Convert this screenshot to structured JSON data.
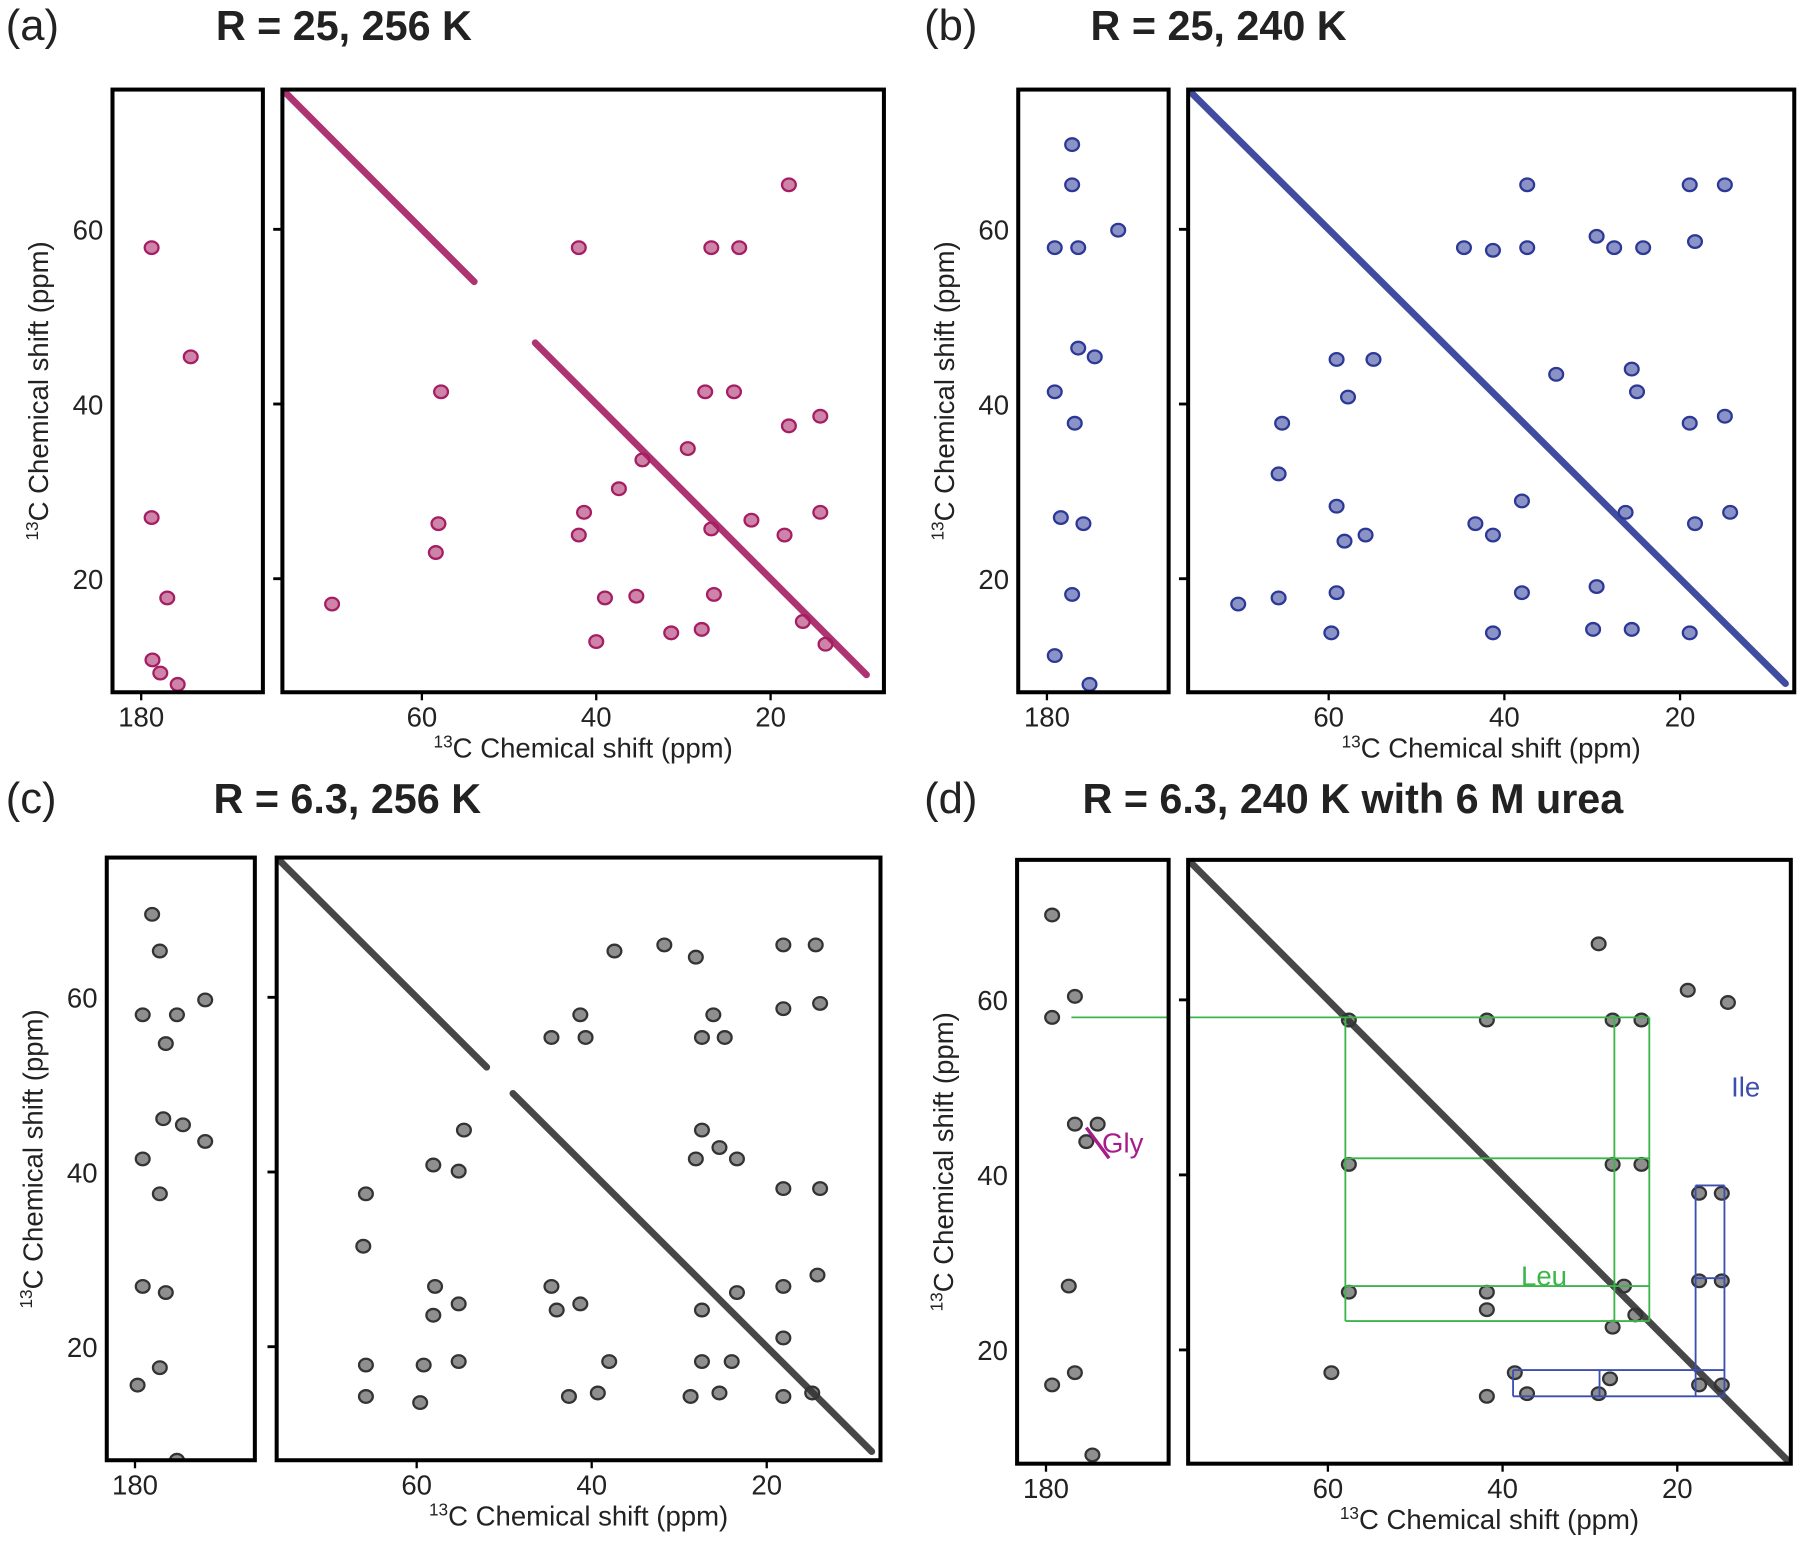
{
  "chart_data": [
    {
      "type": "scatter",
      "panel_label": "(a)",
      "title": "R = 25, 256 K",
      "color": "#a51d62",
      "xlabel_isotope": "13",
      "xlabel": "C Chemical shift (ppm)",
      "ylabel_isotope": "13",
      "ylabel": "C Chemical shift (ppm)",
      "xlim": [
        76,
        7
      ],
      "ylim": [
        76,
        7
      ],
      "xticks": [
        60,
        40,
        20
      ],
      "yticks": [
        20,
        40,
        60
      ],
      "strip_xlim": [
        183.3,
        166
      ],
      "strip_xticks": [
        180
      ],
      "diagonal": {
        "x": [
          76,
          54,
          null,
          47,
          9
        ],
        "y": [
          76,
          54,
          null,
          47,
          9
        ]
      },
      "series": [
        {
          "x": [
            31.4,
            27.9,
            39,
            35.4,
            26.5,
            58.4,
            58.1,
            42,
            41.4,
            22.2,
            18.4,
            14.3,
            57.8,
            27.5,
            24.2,
            17.9,
            14.3,
            42,
            26.8,
            23.6,
            17.9,
            70.3,
            40,
            34.7,
            29.5,
            37.4,
            26.8,
            16.3,
            13.7
          ],
          "y": [
            13.8,
            14.2,
            17.8,
            18,
            18.2,
            23,
            26.3,
            25,
            27.6,
            26.7,
            25,
            27.6,
            41.4,
            41.4,
            41.4,
            37.5,
            38.6,
            57.9,
            57.9,
            57.9,
            65.1,
            17.1,
            12.8,
            33.6,
            34.9,
            30.3,
            25.7,
            15.1,
            12.5
          ]
        }
      ],
      "strip_series": [
        {
          "x": [
            178.7,
            178.8,
            178.8,
            174.3,
            177,
            177.8,
            175.8
          ],
          "y": [
            10.7,
            27,
            57.9,
            45.4,
            17.8,
            9.2,
            7.9
          ]
        }
      ]
    },
    {
      "type": "scatter",
      "panel_label": "(b)",
      "title": "R = 25, 240 K",
      "color": "#2b3896",
      "xlabel_isotope": "13",
      "xlabel": "C Chemical shift (ppm)",
      "ylabel_isotope": "13",
      "ylabel": "C Chemical shift (ppm)",
      "xlim": [
        76,
        7
      ],
      "ylim": [
        76,
        7
      ],
      "xticks": [
        60,
        40,
        20
      ],
      "yticks": [
        20,
        40,
        60
      ],
      "strip_xlim": [
        183.3,
        166
      ],
      "strip_xticks": [
        180
      ],
      "diagonal": {
        "x": [
          76,
          8
        ],
        "y": [
          76,
          8
        ]
      },
      "series": [
        {
          "x": [
            70.3,
            65.7,
            59.7,
            59.1,
            58.2,
            55.8,
            59.1,
            65.7,
            65.3,
            57.8,
            54.9,
            59.1,
            41.3,
            38,
            43.3,
            41.3,
            38,
            29.9,
            25.5,
            29.5,
            26.2,
            24.9,
            25.5,
            18.9,
            18.3,
            14.3,
            18.9,
            14.9,
            44.6,
            41.3,
            37.4,
            29.5,
            27.5,
            24.2,
            18.3,
            37.4,
            18.9,
            14.9,
            34.1
          ],
          "y": [
            17.1,
            17.8,
            13.8,
            18.4,
            24.3,
            25,
            28.3,
            32,
            37.8,
            40.8,
            45.1,
            45.1,
            13.8,
            18.4,
            26.3,
            25,
            28.9,
            14.2,
            14.2,
            19.1,
            27.6,
            41.4,
            44,
            13.8,
            26.3,
            27.6,
            37.8,
            38.6,
            57.9,
            57.6,
            57.9,
            59.2,
            57.9,
            57.9,
            58.6,
            65.1,
            65.1,
            65.1,
            43.4
          ]
        }
      ],
      "strip_series": [
        {
          "x": [
            177.1,
            178.4,
            175.8,
            176.8,
            179.1,
            174.5,
            176.4,
            179.1,
            176.4,
            171.8,
            177.1,
            177.1,
            179.1,
            175.1
          ],
          "y": [
            18.2,
            27,
            26.3,
            37.8,
            41.4,
            45.4,
            46.4,
            57.9,
            57.9,
            59.9,
            65.1,
            69.7,
            11.2,
            7.9
          ]
        }
      ]
    },
    {
      "type": "scatter",
      "panel_label": "(c)",
      "title": "R = 6.3, 256 K",
      "color": "#333333",
      "xlabel_isotope": "13",
      "xlabel": "C Chemical shift (ppm)",
      "ylabel_isotope": "13",
      "ylabel": "C Chemical shift (ppm)",
      "xlim": [
        76,
        7
      ],
      "ylim": [
        76,
        7
      ],
      "xticks": [
        60,
        40,
        20
      ],
      "yticks": [
        20,
        40,
        60
      ],
      "strip_xlim": [
        183.3,
        166
      ],
      "strip_xticks": [
        180
      ],
      "diagonal": {
        "x": [
          76,
          52,
          null,
          49,
          8
        ],
        "y": [
          76,
          52,
          null,
          49,
          8
        ]
      },
      "series": [
        {
          "x": [
            65.8,
            65.8,
            59.6,
            59.2,
            55.2,
            58.1,
            57.9,
            55.2,
            66.1,
            65.8,
            58.1,
            55.2,
            54.6,
            42.6,
            39.3,
            38,
            44,
            41.3,
            44.6,
            28.7,
            25.4,
            27.4,
            24,
            27.4,
            23.4,
            18.1,
            14.8,
            18.1,
            18.1,
            14.2,
            18.1,
            13.9,
            28.1,
            25.4,
            23.4,
            27.4,
            44.6,
            40.7,
            41.3,
            27.4,
            24.8,
            26.1,
            18.1,
            13.9,
            37.4,
            31.7,
            28.1,
            18.1,
            14.4
          ],
          "y": [
            14.3,
            17.9,
            13.6,
            17.9,
            18.3,
            23.6,
            26.9,
            24.9,
            31.5,
            37.5,
            40.8,
            40.1,
            44.8,
            14.3,
            14.7,
            18.3,
            24.2,
            24.9,
            26.9,
            14.3,
            14.7,
            18.3,
            18.3,
            24.2,
            26.2,
            14.3,
            14.7,
            21,
            26.9,
            28.2,
            38.1,
            38.1,
            41.5,
            42.8,
            41.5,
            44.8,
            55.4,
            55.4,
            58,
            55.4,
            55.4,
            58,
            58.7,
            59.3,
            65.3,
            66,
            64.6,
            66,
            66
          ]
        }
      ],
      "strip_series": [
        {
          "x": [
            177.1,
            179.1,
            176.4,
            177.1,
            179.1,
            174.4,
            176.7,
            171.8,
            179.1,
            176.4,
            175.1,
            171.8,
            177.1,
            178,
            179.7,
            175.1
          ],
          "y": [
            17.6,
            26.9,
            26.2,
            37.5,
            41.5,
            45.4,
            46.1,
            43.5,
            58,
            54.7,
            58,
            59.7,
            65.3,
            69.5,
            15.6,
            7
          ]
        }
      ]
    },
    {
      "type": "scatter",
      "panel_label": "(d)",
      "title": "R = 6.3, 240 K with 6 M urea",
      "color": "#333333",
      "xlabel_isotope": "13",
      "xlabel": "C Chemical shift (ppm)",
      "ylabel_isotope": "13",
      "ylabel": "C Chemical shift (ppm)",
      "xlim": [
        76,
        7
      ],
      "ylim": [
        76,
        7
      ],
      "xticks": [
        60,
        40,
        20
      ],
      "yticks": [
        20,
        40,
        60
      ],
      "strip_xlim": [
        183.3,
        166
      ],
      "strip_xticks": [
        180
      ],
      "diagonal": {
        "x": [
          76,
          7
        ],
        "y": [
          76,
          7
        ]
      },
      "series": [
        {
          "x": [
            59.6,
            41.8,
            37.2,
            38.6,
            29,
            27.7,
            57.6,
            57.6,
            57.6,
            41.8,
            41.8,
            27.4,
            24.8,
            26.1,
            27.4,
            24.1,
            41.8,
            27.4,
            24.1,
            17.5,
            14.9,
            17.5,
            14.9,
            17.5,
            14.9,
            18.8,
            29,
            14.2
          ],
          "y": [
            17.4,
            14.7,
            15,
            17.4,
            15,
            16.7,
            26.6,
            41.2,
            57.7,
            24.6,
            26.6,
            22.6,
            24,
            27.3,
            41.2,
            41.2,
            57.7,
            57.7,
            57.7,
            27.9,
            27.9,
            37.9,
            37.9,
            16,
            16,
            61.1,
            66.4,
            59.7
          ]
        }
      ],
      "strip_series": [
        {
          "x": [
            175.4,
            176.7,
            174.1,
            179.3,
            176.7,
            177.4,
            176.7,
            179.3,
            179.3,
            174.7
          ],
          "y": [
            43.8,
            45.8,
            45.8,
            58,
            60.4,
            27.3,
            17.4,
            69.7,
            16,
            8
          ]
        }
      ],
      "annotations": [
        {
          "text": "Leu",
          "color": "#3cb54a",
          "lines": [
            [
              58,
              23.3,
              23.2,
              23.3
            ],
            [
              58,
              27.3,
              23.2,
              27.3
            ],
            [
              58,
              41.9,
              23.2,
              41.9
            ],
            [
              76,
              58,
              23.2,
              58
            ],
            [
              58,
              23.3,
              58,
              58
            ],
            [
              27.2,
              23.3,
              27.2,
              58
            ],
            [
              23.2,
              23.3,
              23.2,
              58
            ]
          ],
          "strip_lines": [
            [
              177.1,
              58,
              166,
              58
            ]
          ]
        },
        {
          "text": "Ile",
          "color": "#3d4fae",
          "lines": [
            [
              38.8,
              14.7,
              14.6,
              14.7
            ],
            [
              38.8,
              17.7,
              14.6,
              17.7
            ],
            [
              38.8,
              14.7,
              38.8,
              17.7
            ],
            [
              28.9,
              14.7,
              28.9,
              17.7
            ],
            [
              17.9,
              14.7,
              17.9,
              38.8
            ],
            [
              14.6,
              14.7,
              14.6,
              38.8
            ],
            [
              17.9,
              28.2,
              14.6,
              28.2
            ],
            [
              17.9,
              38.8,
              14.6,
              38.8
            ]
          ],
          "strip_lines": []
        },
        {
          "text": "Gly",
          "color": "#a51d8a",
          "lines": [],
          "strip_lines": [
            [
              175.4,
              45.4,
              172.8,
              41.9
            ]
          ]
        }
      ]
    }
  ]
}
